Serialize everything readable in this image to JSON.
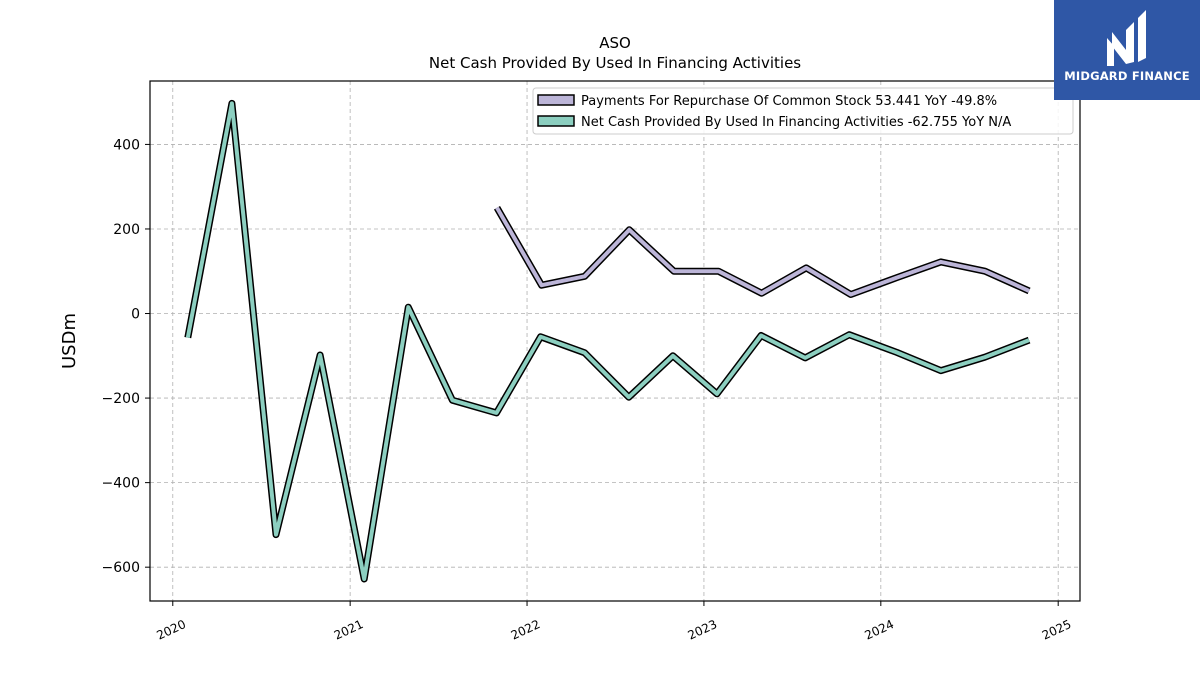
{
  "brand": {
    "name": "MIDGARD FINANCE",
    "bg_color": "#2f57a6"
  },
  "chart_data": {
    "type": "line",
    "title": "ASO",
    "subtitle": "Net Cash Provided By Used In Financing Activities",
    "ylabel": "USDm",
    "xlabel": "",
    "xlim": [
      "2019-11-15",
      "2025-02-15"
    ],
    "ylim": [
      -680,
      550
    ],
    "x_ticks": [
      "2020",
      "2021",
      "2022",
      "2023",
      "2024",
      "2025"
    ],
    "y_ticks": [
      400,
      200,
      0,
      -200,
      -400,
      -600
    ],
    "y_tick_labels": [
      "400",
      "200",
      "0",
      "−200",
      "−400",
      "−600"
    ],
    "grid": true,
    "legend_position": "top-right",
    "series": [
      {
        "name": "Payments For Repurchase Of Common Stock",
        "legend_label": "Payments For Repurchase Of Common Stock  53.441 YoY -49.8%",
        "color": "#bcb5d8",
        "points": [
          [
            "2021-10-31",
            250
          ],
          [
            "2022-01-31",
            67
          ],
          [
            "2022-04-30",
            88
          ],
          [
            "2022-07-31",
            198
          ],
          [
            "2022-10-31",
            100
          ],
          [
            "2023-01-31",
            100
          ],
          [
            "2023-04-30",
            48
          ],
          [
            "2023-07-31",
            108
          ],
          [
            "2023-10-31",
            45
          ],
          [
            "2024-02-03",
            85
          ],
          [
            "2024-05-04",
            122
          ],
          [
            "2024-08-03",
            100
          ],
          [
            "2024-11-02",
            53.441
          ]
        ]
      },
      {
        "name": "Net Cash Provided By Used In Financing Activities",
        "legend_label": "Net Cash Provided By Used In Financing Activities  -62.755 YoY N/A",
        "color": "#8ccfc0",
        "points": [
          [
            "2020-02-01",
            -57
          ],
          [
            "2020-05-02",
            497
          ],
          [
            "2020-08-01",
            -523
          ],
          [
            "2020-10-31",
            -98
          ],
          [
            "2021-01-30",
            -628
          ],
          [
            "2021-05-01",
            15
          ],
          [
            "2021-07-31",
            -205
          ],
          [
            "2021-10-30",
            -235
          ],
          [
            "2022-01-29",
            -55
          ],
          [
            "2022-04-30",
            -93
          ],
          [
            "2022-07-30",
            -198
          ],
          [
            "2022-10-29",
            -100
          ],
          [
            "2023-01-28",
            -190
          ],
          [
            "2023-04-29",
            -52
          ],
          [
            "2023-07-29",
            -105
          ],
          [
            "2023-10-28",
            -50
          ],
          [
            "2024-02-03",
            -92
          ],
          [
            "2024-05-04",
            -135
          ],
          [
            "2024-08-03",
            -103
          ],
          [
            "2024-11-02",
            -62.755
          ]
        ]
      }
    ]
  }
}
